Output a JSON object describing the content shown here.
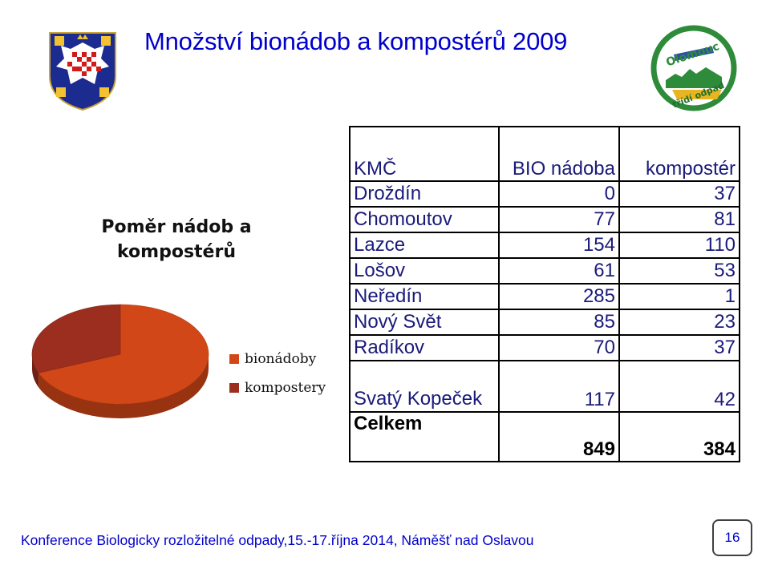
{
  "title": "Množství bionádob a kompostérů 2009",
  "chart_data": {
    "type": "pie",
    "title": "Poměr nádob a kompostérů",
    "categories": [
      "bionádoby",
      "kompostery"
    ],
    "values": [
      849,
      384
    ],
    "colors": [
      "#d24718",
      "#9b2e1f"
    ],
    "legend": "right",
    "style": "3d"
  },
  "table": {
    "headers": [
      "KMČ",
      "BIO nádoba",
      "kompostér"
    ],
    "rows": [
      {
        "name": "Droždín",
        "bio": "0",
        "komp": "37"
      },
      {
        "name": "Chomoutov",
        "bio": "77",
        "komp": "81"
      },
      {
        "name": "Lazce",
        "bio": "154",
        "komp": "110"
      },
      {
        "name": "Lošov",
        "bio": "61",
        "komp": "53"
      },
      {
        "name": "Neředín",
        "bio": "285",
        "komp": "1"
      },
      {
        "name": "Nový Svět",
        "bio": "85",
        "komp": "23"
      },
      {
        "name": "Radíkov",
        "bio": "70",
        "komp": "37"
      },
      {
        "name": "Svatý Kopeček",
        "bio": "117",
        "komp": "42"
      }
    ],
    "total": {
      "name": "Celkem",
      "bio": "849",
      "komp": "384"
    }
  },
  "logo": {
    "text_top": "Olomouc",
    "text_bottom": "třídí odpad"
  },
  "footer": {
    "text": "Konference Biologicky rozložitelné odpady,15.-17.října 2014, Náměšť nad Oslavou",
    "page_number": "16"
  }
}
